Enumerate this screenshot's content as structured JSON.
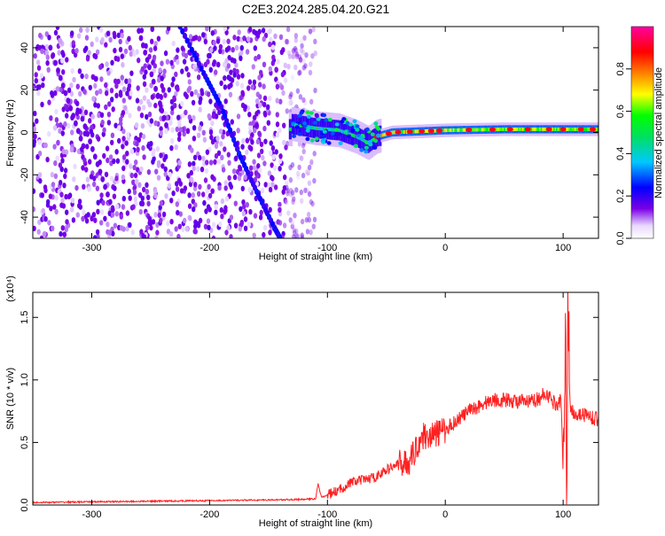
{
  "title": "C2E3.2024.285.04.20.G21",
  "chart_data": [
    {
      "type": "heatmap",
      "xlabel": "Height of straight line (km)",
      "ylabel": "Frequency (Hz)",
      "xlim": [
        -350,
        130
      ],
      "ylim": [
        -50,
        50
      ],
      "xticks": [
        -300,
        -200,
        -100,
        0,
        100
      ],
      "xtick_labels": [
        "-300",
        "-200",
        "-100",
        "0",
        "100"
      ],
      "yticks": [
        -40,
        -20,
        0,
        20,
        40
      ],
      "ytick_labels": [
        "-40",
        "-20",
        "0",
        "20",
        "40"
      ],
      "colorbar": {
        "label": "Normalized spectral amplitude",
        "range": [
          0,
          1
        ],
        "ticks": [
          0.0,
          0.2,
          0.4,
          0.6,
          0.8
        ],
        "tick_labels": [
          "0.0",
          "0.2",
          "0.4",
          "0.6",
          "0.8"
        ],
        "colors": [
          "#ffffff",
          "#7a00e6",
          "#0000ff",
          "#00c8ff",
          "#00ff00",
          "#ffff00",
          "#ff8000",
          "#ff0000",
          "#ff00a0"
        ]
      },
      "features": [
        {
          "name": "noise",
          "x_range": [
            -350,
            -120
          ],
          "y_range": [
            -50,
            50
          ],
          "level": 0.15
        },
        {
          "name": "diagonal streak",
          "points": [
            [
              -225,
              50
            ],
            [
              -205,
              28
            ],
            [
              -190,
              12
            ],
            [
              -175,
              -10
            ],
            [
              -160,
              -28
            ],
            [
              -145,
              -45
            ],
            [
              -140,
              -50
            ]
          ],
          "level": 0.25
        },
        {
          "name": "signal band",
          "points": [
            [
              -130,
              4
            ],
            [
              -110,
              2
            ],
            [
              -90,
              1
            ],
            [
              -75,
              -2
            ],
            [
              -65,
              -5
            ],
            [
              -58,
              -2
            ],
            [
              -45,
              0
            ],
            [
              0,
              1
            ],
            [
              50,
              1.5
            ],
            [
              100,
              1.5
            ],
            [
              130,
              1.5
            ]
          ],
          "level": 0.9
        }
      ]
    },
    {
      "type": "line",
      "xlabel": "Height of straight line (km)",
      "ylabel": "SNR (10 * v/v)",
      "scale_label": "(x10⁴)",
      "xlim": [
        -350,
        130
      ],
      "ylim": [
        0,
        1.7
      ],
      "xticks": [
        -300,
        -200,
        -100,
        0,
        100
      ],
      "xtick_labels": [
        "-300",
        "-200",
        "-100",
        "0",
        "100"
      ],
      "yticks": [
        0.0,
        0.5,
        1.0,
        1.5
      ],
      "ytick_labels": [
        "0.0",
        "0.5",
        "1.0",
        "1.5"
      ],
      "color": "#ff2020",
      "series": [
        {
          "x": [
            -350,
            -300,
            -250,
            -200,
            -150,
            -120,
            -110,
            -108,
            -105,
            -100,
            -90,
            -80,
            -70,
            -60,
            -50,
            -40,
            -30,
            -25,
            -20,
            -10,
            0,
            10,
            20,
            30,
            40,
            50,
            60,
            70,
            80,
            85,
            90,
            95,
            98,
            100,
            102,
            103,
            104,
            106,
            110,
            120,
            130
          ],
          "y": [
            0.02,
            0.025,
            0.03,
            0.035,
            0.04,
            0.045,
            0.05,
            0.17,
            0.06,
            0.08,
            0.12,
            0.18,
            0.2,
            0.22,
            0.28,
            0.33,
            0.35,
            0.45,
            0.55,
            0.56,
            0.6,
            0.68,
            0.75,
            0.8,
            0.84,
            0.84,
            0.83,
            0.82,
            0.85,
            0.9,
            0.84,
            0.8,
            0.85,
            0.3,
            1.55,
            0.1,
            1.6,
            0.78,
            0.73,
            0.72,
            0.68
          ]
        }
      ]
    }
  ]
}
